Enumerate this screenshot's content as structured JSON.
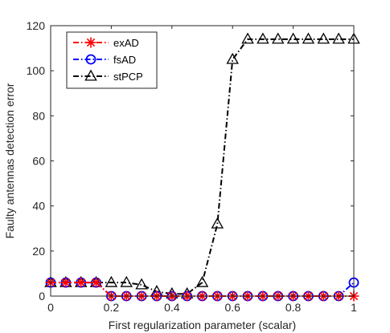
{
  "chart_data": {
    "type": "line",
    "xlabel": "First regularization parameter (scalar)",
    "ylabel": "Faulty antennas detection error",
    "xlim": [
      0,
      1
    ],
    "ylim": [
      0,
      120
    ],
    "xticks": [
      0,
      0.2,
      0.4,
      0.6,
      0.8,
      1
    ],
    "xtick_labels": [
      "0",
      "0.2",
      "0.4",
      "0.6",
      "0.8",
      "1"
    ],
    "yticks": [
      0,
      20,
      40,
      60,
      80,
      100,
      120
    ],
    "ytick_labels": [
      "0",
      "20",
      "40",
      "60",
      "80",
      "100",
      "120"
    ],
    "grid": false,
    "legend_position": "top-left",
    "x": [
      0,
      0.05,
      0.1,
      0.15,
      0.2,
      0.25,
      0.3,
      0.35,
      0.4,
      0.45,
      0.5,
      0.55,
      0.6,
      0.65,
      0.7,
      0.75,
      0.8,
      0.85,
      0.9,
      0.95,
      1
    ],
    "series": [
      {
        "name": "exAD",
        "color": "#ff0000",
        "marker": "asterisk",
        "linestyle": "dashdot",
        "values": [
          6,
          6,
          6,
          6,
          0,
          0,
          0,
          0,
          0,
          0,
          0,
          0,
          0,
          0,
          0,
          0,
          0,
          0,
          0,
          0,
          0
        ]
      },
      {
        "name": "fsAD",
        "color": "#0000ff",
        "marker": "circle",
        "linestyle": "dashdot",
        "values": [
          6,
          6,
          6,
          6,
          0,
          0,
          0,
          0,
          0,
          0,
          0,
          0,
          0,
          0,
          0,
          0,
          0,
          0,
          0,
          0,
          6
        ]
      },
      {
        "name": "stPCP",
        "color": "#000000",
        "marker": "triangle",
        "linestyle": "dashdot",
        "values": [
          6,
          6,
          6,
          6,
          6,
          6,
          5,
          2,
          1,
          1,
          6,
          32,
          105,
          114,
          114,
          114,
          114,
          114,
          114,
          114,
          114
        ]
      }
    ]
  }
}
